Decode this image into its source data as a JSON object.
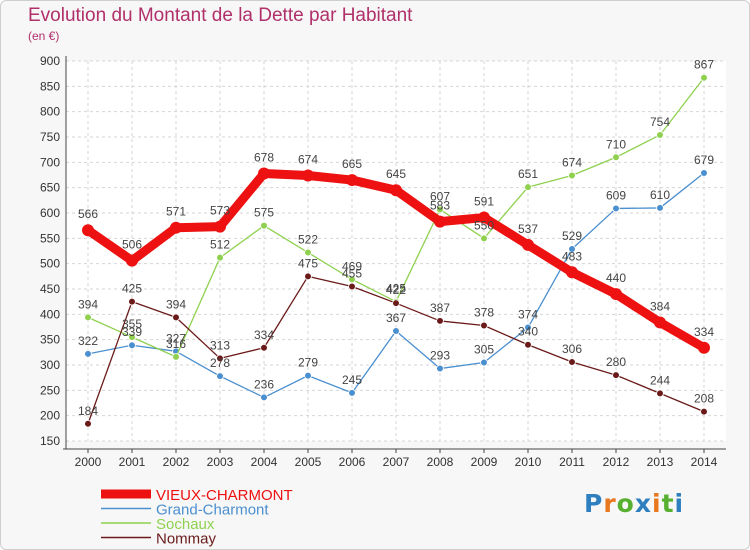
{
  "title": "Evolution du Montant de la Dette par Habitant",
  "subtitle": "(en €)",
  "logo": {
    "text": "Proxiti",
    "letter_colors": [
      "#2e7fbf",
      "#e8771e",
      "#58b030",
      "#2e7fbf",
      "#e8771e",
      "#58b030",
      "#2e7fbf"
    ]
  },
  "colors": {
    "title": "#b0306a",
    "plot_background": "#ffffff",
    "grid": "#d6d6d6"
  },
  "chart_data": {
    "type": "line",
    "title": "Evolution du Montant de la Dette par Habitant",
    "subtitle": "(en €)",
    "ylim": [
      150,
      900
    ],
    "yticks": [
      150,
      200,
      250,
      300,
      350,
      400,
      450,
      500,
      550,
      600,
      650,
      700,
      750,
      800,
      850,
      900
    ],
    "x": [
      "2000",
      "2001",
      "2002",
      "2003",
      "2004",
      "2005",
      "2006",
      "2007",
      "2008",
      "2009",
      "2010",
      "2011",
      "2012",
      "2013",
      "2014"
    ],
    "grid": true,
    "legend_position": "bottom-left",
    "series": [
      {
        "name": "VIEUX-CHARMONT",
        "color": "#ee1111",
        "emphasis": true,
        "values": [
          566,
          506,
          571,
          573,
          678,
          674,
          665,
          645,
          583,
          591,
          537,
          483,
          440,
          384,
          334
        ]
      },
      {
        "name": "Grand-Charmont",
        "color": "#4a8fcf",
        "emphasis": false,
        "values": [
          322,
          339,
          327,
          278,
          236,
          279,
          245,
          367,
          293,
          305,
          374,
          529,
          609,
          610,
          679
        ]
      },
      {
        "name": "Sochaux",
        "color": "#8fd14f",
        "emphasis": false,
        "values": [
          394,
          355,
          316,
          512,
          575,
          522,
          469,
          425,
          607,
          550,
          651,
          674,
          710,
          754,
          867
        ]
      },
      {
        "name": "Nommay",
        "color": "#6b1a1a",
        "emphasis": false,
        "values": [
          184,
          425,
          394,
          313,
          334,
          475,
          455,
          422,
          387,
          378,
          340,
          306,
          280,
          244,
          208
        ]
      }
    ]
  }
}
